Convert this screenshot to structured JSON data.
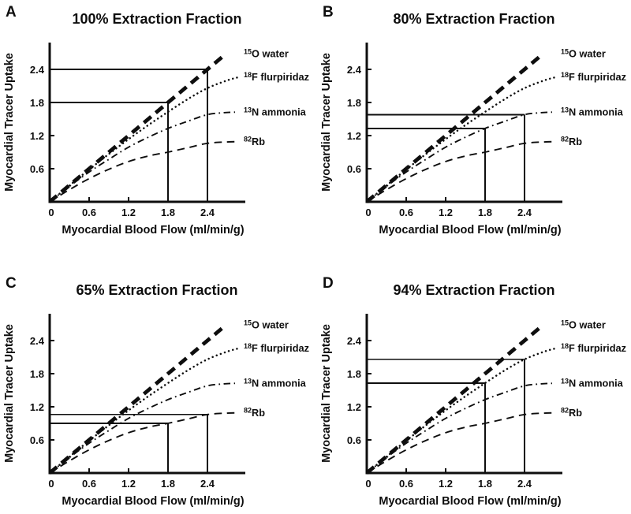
{
  "figure": {
    "background": "#ffffff",
    "ink": "#0e0e0e"
  },
  "chart_data": {
    "type": "line",
    "xlabel": "Myocardial Blood Flow (ml/min/g)",
    "ylabel": "Myocardial Tracer Uptake",
    "x_ticks": [
      0,
      0.6,
      1.2,
      1.8,
      2.4
    ],
    "x_tick_labels": [
      "0",
      "0.6",
      "1.2",
      "1.8",
      "2.4"
    ],
    "y_ticks": [
      0.6,
      1.2,
      1.8,
      2.4
    ],
    "y_tick_labels": [
      "0.6",
      "1.2",
      "1.8",
      "2.4"
    ],
    "xlim": [
      0,
      2.97
    ],
    "ylim": [
      0,
      2.88
    ],
    "grid": false,
    "legend_position": "right-of-curve-ends",
    "panels": [
      {
        "letter": "A",
        "title": "100% Extraction Fraction",
        "marks_series": "15O water",
        "reference_points": [
          {
            "x": 1.8,
            "y": 1.8
          },
          {
            "x": 2.4,
            "y": 2.4
          }
        ]
      },
      {
        "letter": "B",
        "title": "80% Extraction Fraction",
        "marks_series": "13N ammonia",
        "reference_points": [
          {
            "x": 1.8,
            "y": 1.33
          },
          {
            "x": 2.4,
            "y": 1.58
          }
        ]
      },
      {
        "letter": "C",
        "title": "65% Extraction Fraction",
        "marks_series": "82Rb",
        "reference_points": [
          {
            "x": 1.8,
            "y": 0.9
          },
          {
            "x": 2.4,
            "y": 1.06
          }
        ]
      },
      {
        "letter": "D",
        "title": "94% Extraction Fraction",
        "marks_series": "18F flurpiridaz",
        "reference_points": [
          {
            "x": 1.8,
            "y": 1.63
          },
          {
            "x": 2.4,
            "y": 2.06
          }
        ]
      }
    ],
    "series": [
      {
        "id": "water-15o",
        "name": "15O water",
        "label_sup": "15",
        "label_main": "O water",
        "line_style": "thick-dashed",
        "x": [
          0,
          2.68
        ],
        "y": [
          0,
          2.68
        ]
      },
      {
        "id": "flurpiridaz-18f",
        "name": "18F flurpiridaz",
        "label_sup": "18",
        "label_main": "F flurpiridaz",
        "line_style": "dotted",
        "x": [
          0,
          0.3,
          0.6,
          0.9,
          1.2,
          1.5,
          1.8,
          2.1,
          2.4,
          2.7,
          2.88
        ],
        "y": [
          0,
          0.295,
          0.585,
          0.865,
          1.135,
          1.39,
          1.63,
          1.86,
          2.06,
          2.2,
          2.26
        ]
      },
      {
        "id": "ammonia-13n",
        "name": "13N ammonia",
        "label_sup": "13",
        "label_main": "N ammonia",
        "line_style": "dash-dot",
        "x": [
          0,
          0.3,
          0.6,
          0.9,
          1.2,
          1.5,
          1.8,
          2.1,
          2.4,
          2.65,
          2.82
        ],
        "y": [
          0,
          0.28,
          0.54,
          0.77,
          0.99,
          1.17,
          1.33,
          1.46,
          1.58,
          1.615,
          1.625
        ]
      },
      {
        "id": "rubidium-82",
        "name": "82Rb",
        "label_sup": "82",
        "label_main": "Rb",
        "line_style": "long-dashed",
        "x": [
          0,
          0.3,
          0.6,
          0.9,
          1.2,
          1.5,
          1.8,
          2.1,
          2.4,
          2.7,
          2.86
        ],
        "y": [
          0,
          0.22,
          0.42,
          0.59,
          0.73,
          0.83,
          0.9,
          0.98,
          1.06,
          1.085,
          1.09
        ]
      }
    ]
  }
}
